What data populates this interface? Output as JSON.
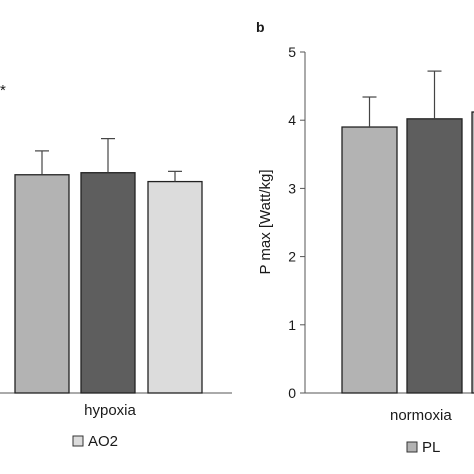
{
  "chart_data": [
    {
      "panel": "",
      "type": "bar",
      "group_label": "hypoxia",
      "ylabel": "",
      "ylim": [
        0,
        5
      ],
      "significance_marker": "*",
      "series": [
        {
          "values": [
            3.2
          ],
          "error": [
            0.35
          ],
          "color": "#b3b3b3"
        },
        {
          "values": [
            3.23
          ],
          "error": [
            0.5
          ],
          "color": "#5e5e5e"
        },
        {
          "values": [
            3.1
          ],
          "error": [
            0.15
          ],
          "color": "#dcdcdc"
        }
      ],
      "legend": [
        {
          "name": "AO2",
          "color": "#dcdcdc"
        }
      ]
    },
    {
      "panel": "b",
      "type": "bar",
      "group_label": "normoxia",
      "ylabel": "P max [Watt/kg]",
      "ylim": [
        0,
        5
      ],
      "yticks": [
        "0",
        "1",
        "2",
        "3",
        "4",
        "5"
      ],
      "series": [
        {
          "values": [
            3.9
          ],
          "error": [
            0.44
          ],
          "color": "#b3b3b3"
        },
        {
          "values": [
            4.02
          ],
          "error": [
            0.7
          ],
          "color": "#5e5e5e"
        },
        {
          "values": [
            4.12
          ],
          "error": [
            0.0
          ],
          "color": "#b3b3b3"
        }
      ],
      "legend": [
        {
          "name": "PL",
          "color": "#b3b3b3"
        }
      ]
    }
  ]
}
